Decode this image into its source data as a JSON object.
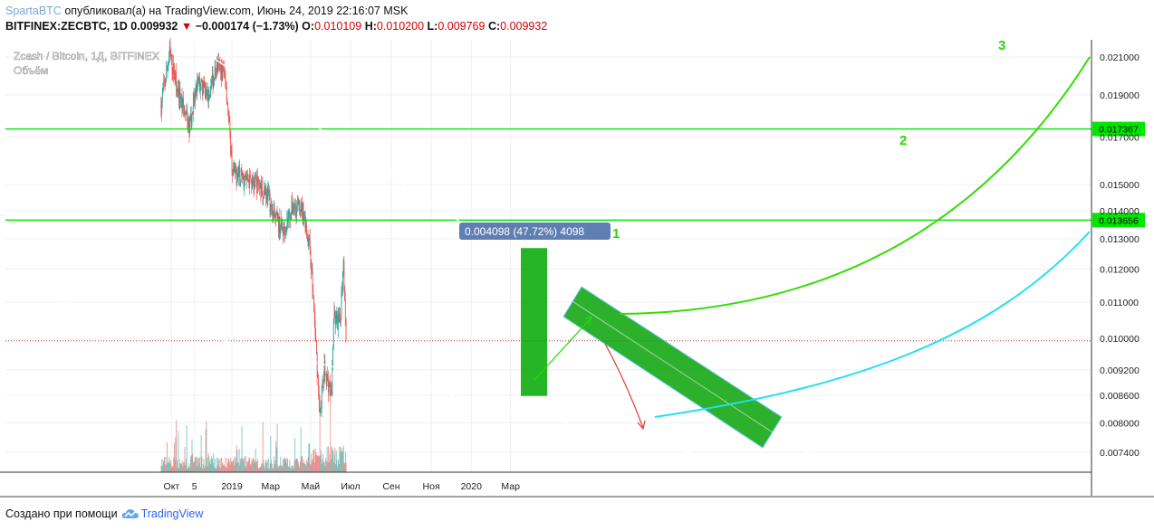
{
  "header": {
    "author": "SpartaBTC",
    "published_text": "опубликовал(а) на TradingView.com, Июнь 24, 2019 22:16:07 MSK",
    "symbol": "BITFINEX:ZECBTC, 1D",
    "last_price": "0.009932",
    "change": "−0.000174 (−1.73%)",
    "open_label": "O:",
    "open": "0.010109",
    "high_label": "H:",
    "high": "0.010200",
    "low_label": "L:",
    "low": "0.009769",
    "close_label": "C:",
    "close": "0.009932"
  },
  "legend": {
    "title": "Zcash / Bitcoin, 1Д, BITFINEX",
    "volume_label": "Объём"
  },
  "footer": {
    "created_with": "Создано при помощи",
    "brand": "TradingView"
  },
  "colors": {
    "up": "#26a69a",
    "down": "#ef5350",
    "level_lines": "#00e600",
    "green_arc": "#33dd00",
    "cyan_arc": "#22e0f0",
    "channel_fill": "#00a000",
    "measure_box": "#5f7fb3"
  },
  "chart_data": {
    "type": "candlestick",
    "symbol": "ZECBTC",
    "exchange": "BITFINEX",
    "timeframe": "1D",
    "y_scale": "log",
    "x_ticks": [
      "Окт",
      "5",
      "2019",
      "Мар",
      "Май",
      "Июл",
      "Сен",
      "Ноя",
      "2020",
      "Мар"
    ],
    "y_ticks": [
      "0.021000",
      "0.019000",
      "0.017000",
      "0.015000",
      "0.014000",
      "0.013000",
      "0.012000",
      "0.011000",
      "0.010000",
      "0.009200",
      "0.008600",
      "0.008000",
      "0.007400"
    ],
    "y_range": [
      0.007,
      0.0225
    ],
    "levels": [
      {
        "value": 0.017367,
        "label": "0.017367"
      },
      {
        "value": 0.013656,
        "label": "0.013656"
      }
    ],
    "level_numbers": [
      "1",
      "2",
      "3"
    ],
    "measure": {
      "text": "0.004098 (47.72%) 4098",
      "from": 0.008586,
      "to": 0.012684
    },
    "price_path": [
      {
        "date": "2018-09-15",
        "price": 0.0185
      },
      {
        "date": "2018-09-28",
        "price": 0.0212
      },
      {
        "date": "2018-10-12",
        "price": 0.0191
      },
      {
        "date": "2018-10-28",
        "price": 0.0174
      },
      {
        "date": "2018-11-10",
        "price": 0.0196
      },
      {
        "date": "2018-11-25",
        "price": 0.019
      },
      {
        "date": "2018-12-10",
        "price": 0.0205
      },
      {
        "date": "2018-12-22",
        "price": 0.02
      },
      {
        "date": "2019-01-02",
        "price": 0.0155
      },
      {
        "date": "2019-01-20",
        "price": 0.0152
      },
      {
        "date": "2019-02-10",
        "price": 0.015
      },
      {
        "date": "2019-02-25",
        "price": 0.0146
      },
      {
        "date": "2019-03-05",
        "price": 0.0138
      },
      {
        "date": "2019-03-20",
        "price": 0.0133
      },
      {
        "date": "2019-04-05",
        "price": 0.0142
      },
      {
        "date": "2019-04-20",
        "price": 0.014
      },
      {
        "date": "2019-05-01",
        "price": 0.0125
      },
      {
        "date": "2019-05-15",
        "price": 0.0082
      },
      {
        "date": "2019-05-22",
        "price": 0.0092
      },
      {
        "date": "2019-06-02",
        "price": 0.0086
      },
      {
        "date": "2019-06-05",
        "price": 0.0105
      },
      {
        "date": "2019-06-15",
        "price": 0.0104
      },
      {
        "date": "2019-06-20",
        "price": 0.0124
      },
      {
        "date": "2019-06-24",
        "price": 0.009932
      }
    ]
  }
}
